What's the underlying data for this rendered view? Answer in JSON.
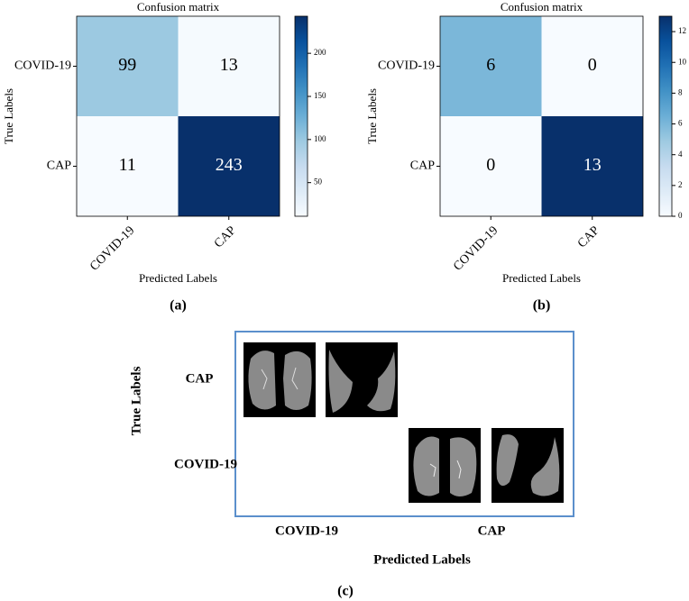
{
  "chart_data": [
    {
      "type": "heatmap",
      "title": "Confusion matrix",
      "xlabel": "Predicted Labels",
      "ylabel": "True Labels",
      "caption": "(a)",
      "x_categories": [
        "COVID-19",
        "CAP"
      ],
      "y_categories": [
        "COVID-19",
        "CAP"
      ],
      "values": [
        [
          99,
          13
        ],
        [
          11,
          243
        ]
      ],
      "colormap": "Blues",
      "colorbar_lim": [
        11,
        243
      ],
      "colorbar_ticks": [
        50,
        100,
        150,
        200
      ]
    },
    {
      "type": "heatmap",
      "title": "Confusion matrix",
      "xlabel": "Predicted Labels",
      "ylabel": "True Labels",
      "caption": "(b)",
      "x_categories": [
        "COVID-19",
        "CAP"
      ],
      "y_categories": [
        "COVID-19",
        "CAP"
      ],
      "values": [
        [
          6,
          0
        ],
        [
          0,
          13
        ]
      ],
      "colormap": "Blues",
      "colorbar_lim": [
        0,
        13
      ],
      "colorbar_ticks": [
        0,
        2,
        4,
        6,
        8,
        10,
        12
      ]
    }
  ],
  "panel_c": {
    "row_labels": [
      "CAP",
      "COVID-19"
    ],
    "col_labels": [
      "COVID-19",
      "CAP"
    ],
    "ylabel": "True Labels",
    "xlabel": "Predicted Labels",
    "caption": "(c)"
  }
}
